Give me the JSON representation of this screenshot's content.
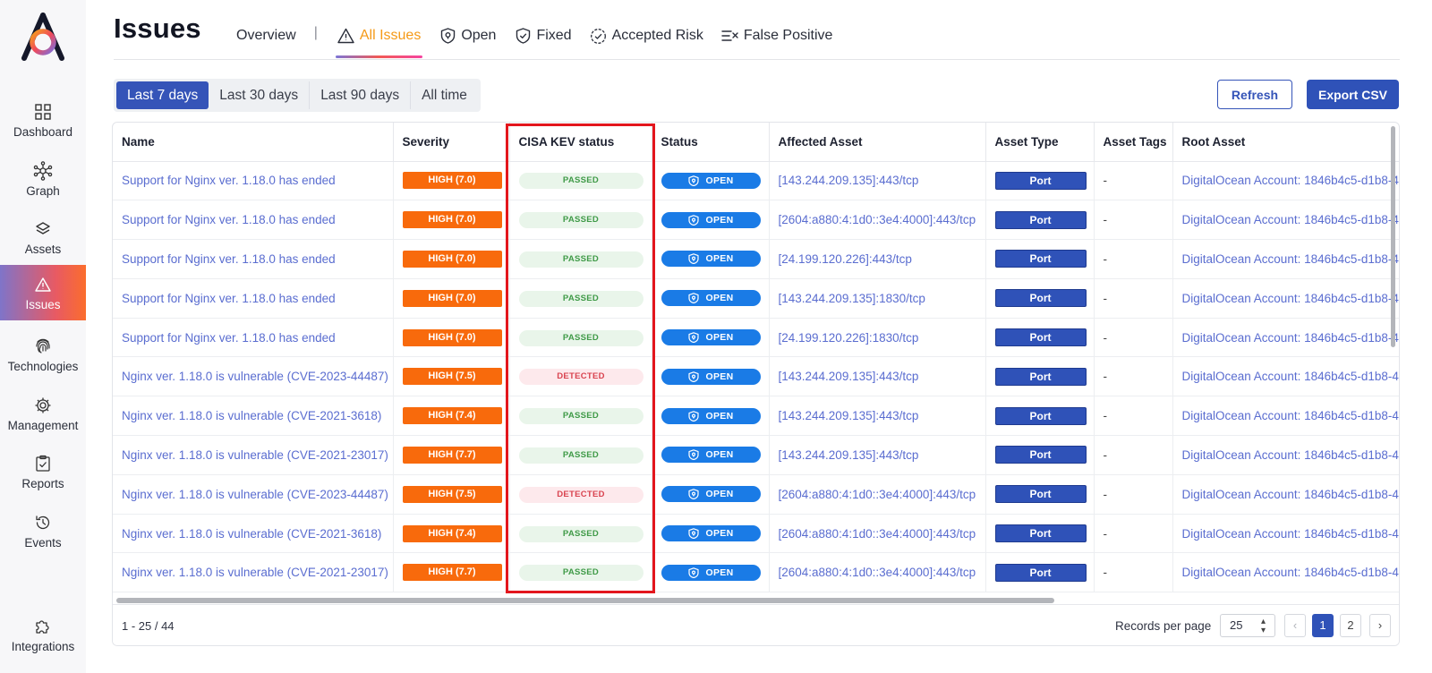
{
  "sidebar": {
    "items": [
      {
        "label": "Dashboard",
        "icon": "dashboard-icon"
      },
      {
        "label": "Graph",
        "icon": "graph-icon"
      },
      {
        "label": "Assets",
        "icon": "assets-icon"
      },
      {
        "label": "Issues",
        "icon": "warning-icon",
        "active": true
      },
      {
        "label": "Technologies",
        "icon": "fingerprint-icon"
      },
      {
        "label": "Management",
        "icon": "gear-icon"
      },
      {
        "label": "Reports",
        "icon": "clipboard-icon"
      },
      {
        "label": "Events",
        "icon": "history-icon"
      },
      {
        "label": "Integrations",
        "icon": "puzzle-icon"
      }
    ]
  },
  "header": {
    "title": "Issues",
    "tabs": [
      {
        "label": "Overview"
      },
      {
        "label": "All Issues",
        "active": true
      },
      {
        "label": "Open"
      },
      {
        "label": "Fixed"
      },
      {
        "label": "Accepted Risk"
      },
      {
        "label": "False Positive"
      }
    ],
    "separator": "|"
  },
  "filters": {
    "ranges": [
      "Last 7 days",
      "Last 30 days",
      "Last 90 days",
      "All time"
    ],
    "selected": "Last 7 days"
  },
  "actions": {
    "refresh": "Refresh",
    "export": "Export CSV"
  },
  "table": {
    "columns": [
      "Name",
      "Severity",
      "CISA KEV status",
      "Status",
      "Affected Asset",
      "Asset Type",
      "Asset Tags",
      "Root Asset"
    ],
    "rows": [
      {
        "name": "Support for Nginx ver. 1.18.0 has ended",
        "severity": "HIGH (7.0)",
        "kev": "PASSED",
        "status": "OPEN",
        "asset": "[143.244.209.135]:443/tcp",
        "type": "Port",
        "tags": "-",
        "root": "DigitalOcean Account: 1846b4c5-d1b8-4"
      },
      {
        "name": "Support for Nginx ver. 1.18.0 has ended",
        "severity": "HIGH (7.0)",
        "kev": "PASSED",
        "status": "OPEN",
        "asset": "[2604:a880:4:1d0::3e4:4000]:443/tcp",
        "type": "Port",
        "tags": "-",
        "root": "DigitalOcean Account: 1846b4c5-d1b8-4"
      },
      {
        "name": "Support for Nginx ver. 1.18.0 has ended",
        "severity": "HIGH (7.0)",
        "kev": "PASSED",
        "status": "OPEN",
        "asset": "[24.199.120.226]:443/tcp",
        "type": "Port",
        "tags": "-",
        "root": "DigitalOcean Account: 1846b4c5-d1b8-4"
      },
      {
        "name": "Support for Nginx ver. 1.18.0 has ended",
        "severity": "HIGH (7.0)",
        "kev": "PASSED",
        "status": "OPEN",
        "asset": "[143.244.209.135]:1830/tcp",
        "type": "Port",
        "tags": "-",
        "root": "DigitalOcean Account: 1846b4c5-d1b8-4"
      },
      {
        "name": "Support for Nginx ver. 1.18.0 has ended",
        "severity": "HIGH (7.0)",
        "kev": "PASSED",
        "status": "OPEN",
        "asset": "[24.199.120.226]:1830/tcp",
        "type": "Port",
        "tags": "-",
        "root": "DigitalOcean Account: 1846b4c5-d1b8-4"
      },
      {
        "name": "Nginx ver. 1.18.0 is vulnerable (CVE-2023-44487)",
        "severity": "HIGH (7.5)",
        "kev": "DETECTED",
        "status": "OPEN",
        "asset": "[143.244.209.135]:443/tcp",
        "type": "Port",
        "tags": "-",
        "root": "DigitalOcean Account: 1846b4c5-d1b8-4"
      },
      {
        "name": "Nginx ver. 1.18.0 is vulnerable (CVE-2021-3618)",
        "severity": "HIGH (7.4)",
        "kev": "PASSED",
        "status": "OPEN",
        "asset": "[143.244.209.135]:443/tcp",
        "type": "Port",
        "tags": "-",
        "root": "DigitalOcean Account: 1846b4c5-d1b8-4"
      },
      {
        "name": "Nginx ver. 1.18.0 is vulnerable (CVE-2021-23017)",
        "severity": "HIGH (7.7)",
        "kev": "PASSED",
        "status": "OPEN",
        "asset": "[143.244.209.135]:443/tcp",
        "type": "Port",
        "tags": "-",
        "root": "DigitalOcean Account: 1846b4c5-d1b8-4"
      },
      {
        "name": "Nginx ver. 1.18.0 is vulnerable (CVE-2023-44487)",
        "severity": "HIGH (7.5)",
        "kev": "DETECTED",
        "status": "OPEN",
        "asset": "[2604:a880:4:1d0::3e4:4000]:443/tcp",
        "type": "Port",
        "tags": "-",
        "root": "DigitalOcean Account: 1846b4c5-d1b8-4"
      },
      {
        "name": "Nginx ver. 1.18.0 is vulnerable (CVE-2021-3618)",
        "severity": "HIGH (7.4)",
        "kev": "PASSED",
        "status": "OPEN",
        "asset": "[2604:a880:4:1d0::3e4:4000]:443/tcp",
        "type": "Port",
        "tags": "-",
        "root": "DigitalOcean Account: 1846b4c5-d1b8-4"
      },
      {
        "name": "Nginx ver. 1.18.0 is vulnerable (CVE-2021-23017)",
        "severity": "HIGH (7.7)",
        "kev": "PASSED",
        "status": "OPEN",
        "asset": "[2604:a880:4:1d0::3e4:4000]:443/tcp",
        "type": "Port",
        "tags": "-",
        "root": "DigitalOcean Account: 1846b4c5-d1b8-4"
      }
    ]
  },
  "footer": {
    "range_text": "1 - 25 / 44",
    "records_per_page_label": "Records per page",
    "records_per_page": "25",
    "pages": [
      "1",
      "2"
    ],
    "current_page": "1",
    "prev": "‹",
    "next": "›"
  },
  "colors": {
    "primary": "#2f52b8",
    "severity_high": "#f86a0c",
    "status_open": "#1a7be6",
    "active_tab": "#f59a17",
    "highlight": "#e3161d"
  }
}
